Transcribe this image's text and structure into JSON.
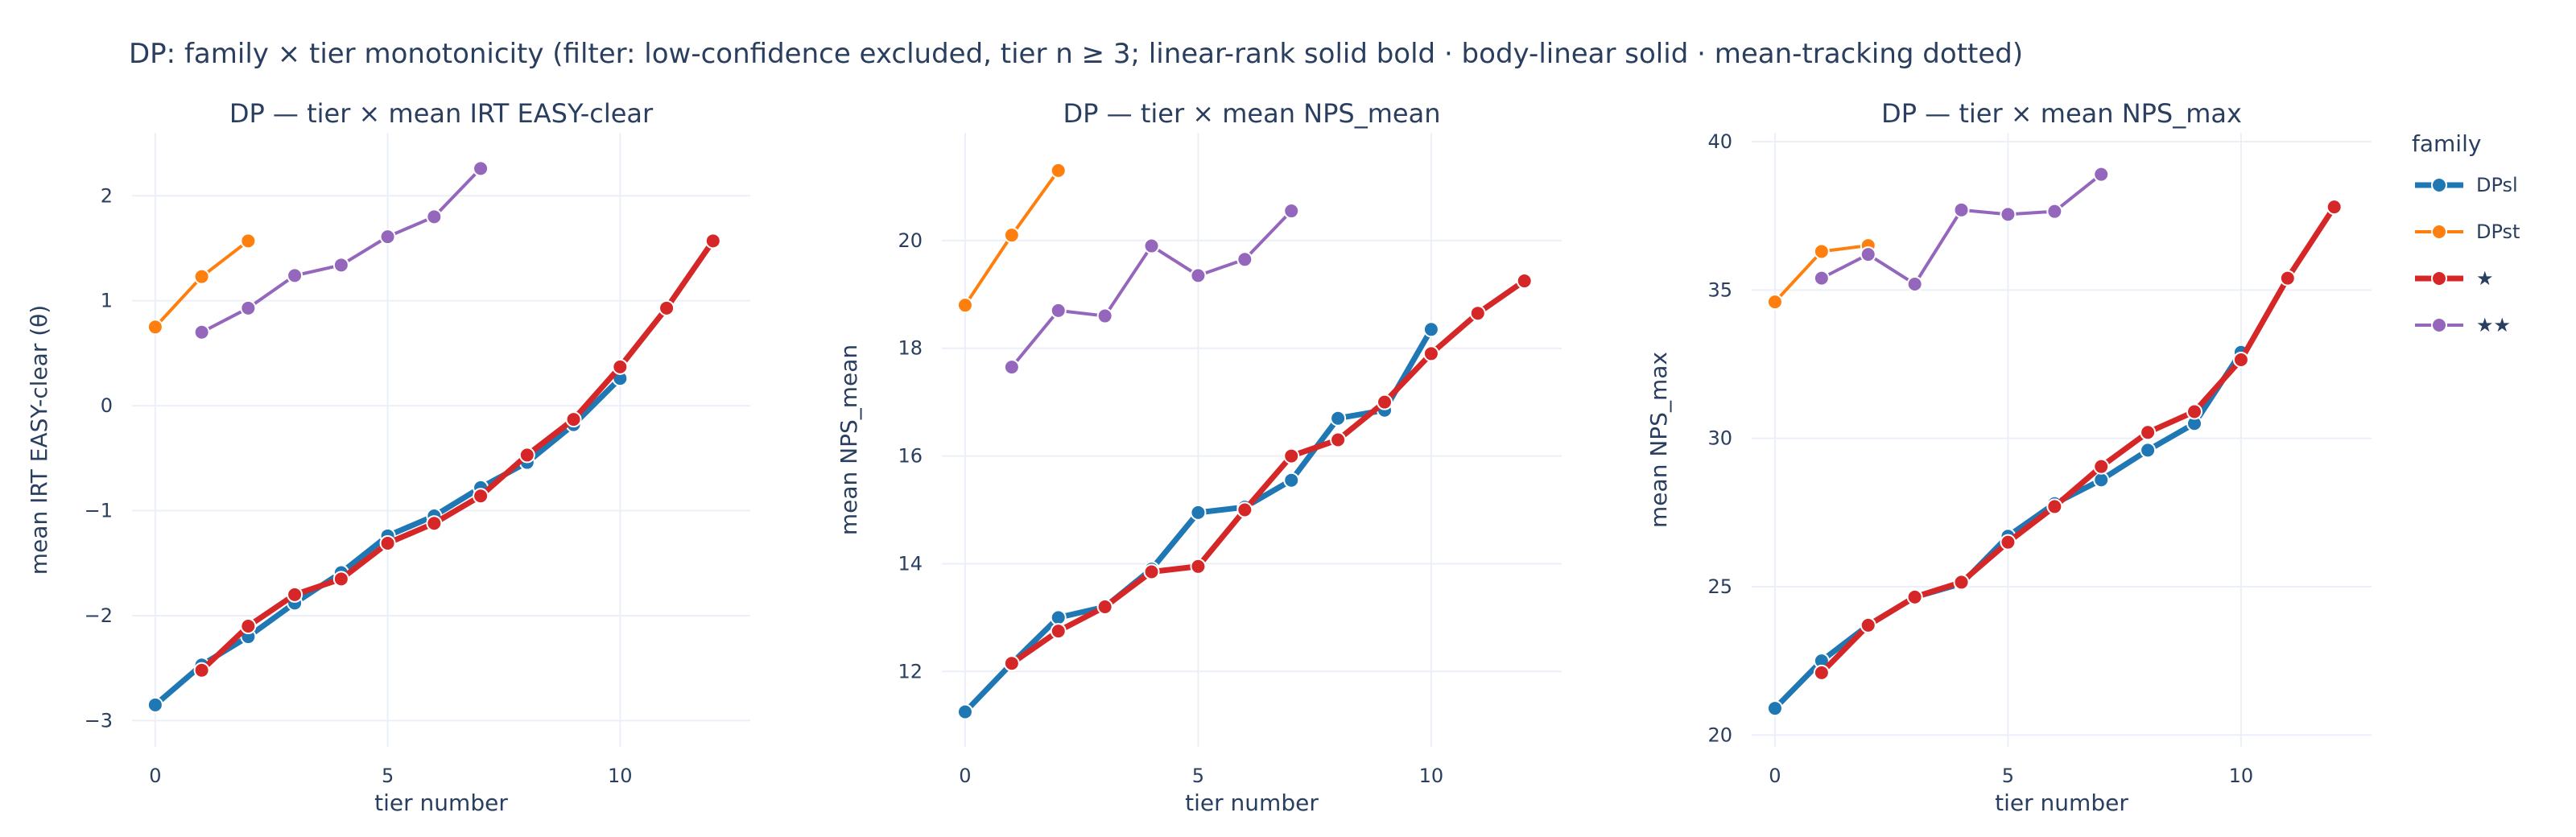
{
  "figure": {
    "title": "DP: family × tier monotonicity (filter: low-confidence excluded, tier n ≥ 3; linear-rank solid bold · body-linear solid · mean-tracking dotted)"
  },
  "legend": {
    "title": "family",
    "placement": "right",
    "entries": [
      {
        "name": "DPsl",
        "color": "#1f77b4",
        "bold": true
      },
      {
        "name": "DPst",
        "color": "#ff7f0e",
        "bold": false
      },
      {
        "name": "★",
        "color": "#d62728",
        "bold": true
      },
      {
        "name": "★★",
        "color": "#9467bd",
        "bold": false
      }
    ]
  },
  "chart_data": [
    {
      "type": "line",
      "title": "DP — tier × mean IRT EASY-clear",
      "xlabel": "tier number",
      "ylabel": "mean IRT EASY-clear (θ)",
      "xlim": [
        -0.5,
        12.8
      ],
      "ylim": [
        -3.25,
        2.6
      ],
      "xticks": [
        0,
        5,
        10
      ],
      "yticks": [
        -3,
        -2,
        -1,
        0,
        1,
        2
      ],
      "grid": true,
      "series": [
        {
          "name": "DPsl",
          "x": [
            0,
            1,
            2,
            3,
            4,
            5,
            6,
            7,
            8,
            9,
            10
          ],
          "y": [
            -2.85,
            -2.47,
            -2.2,
            -1.88,
            -1.59,
            -1.24,
            -1.05,
            -0.78,
            -0.54,
            -0.18,
            0.26
          ]
        },
        {
          "name": "DPst",
          "x": [
            0,
            1,
            2
          ],
          "y": [
            0.75,
            1.23,
            1.57
          ]
        },
        {
          "name": "★",
          "x": [
            1,
            2,
            3,
            4,
            5,
            6,
            7,
            8,
            9,
            10,
            11,
            12
          ],
          "y": [
            -2.52,
            -2.1,
            -1.8,
            -1.65,
            -1.31,
            -1.12,
            -0.86,
            -0.47,
            -0.13,
            0.37,
            0.93,
            1.57
          ]
        },
        {
          "name": "★★",
          "x": [
            1,
            2,
            3,
            4,
            5,
            6,
            7
          ],
          "y": [
            0.7,
            0.93,
            1.24,
            1.34,
            1.61,
            1.8,
            2.26
          ]
        }
      ]
    },
    {
      "type": "line",
      "title": "DP — tier × mean NPS_mean",
      "xlabel": "tier number",
      "ylabel": "mean NPS_mean",
      "xlim": [
        -0.5,
        12.8
      ],
      "ylim": [
        10.6,
        22.0
      ],
      "xticks": [
        0,
        5,
        10
      ],
      "yticks": [
        12,
        14,
        16,
        18,
        20
      ],
      "grid": true,
      "series": [
        {
          "name": "DPsl",
          "x": [
            0,
            1,
            2,
            3,
            4,
            5,
            6,
            7,
            8,
            9,
            10
          ],
          "y": [
            11.25,
            12.15,
            13.0,
            13.2,
            13.9,
            14.95,
            15.05,
            15.55,
            16.7,
            16.85,
            18.35
          ]
        },
        {
          "name": "DPst",
          "x": [
            0,
            1,
            2
          ],
          "y": [
            18.8,
            20.1,
            21.3
          ]
        },
        {
          "name": "★",
          "x": [
            1,
            2,
            3,
            4,
            5,
            6,
            7,
            8,
            9,
            10,
            11,
            12
          ],
          "y": [
            12.15,
            12.75,
            13.2,
            13.85,
            13.95,
            15.0,
            16.0,
            16.3,
            17.0,
            17.9,
            18.65,
            19.25
          ]
        },
        {
          "name": "★★",
          "x": [
            1,
            2,
            3,
            4,
            5,
            6,
            7
          ],
          "y": [
            17.65,
            18.7,
            18.6,
            19.9,
            19.35,
            19.65,
            20.55
          ]
        }
      ]
    },
    {
      "type": "line",
      "title": "DP — tier × mean NPS_max",
      "xlabel": "tier number",
      "ylabel": "mean NPS_max",
      "xlim": [
        -0.5,
        12.8
      ],
      "ylim": [
        19.6,
        40.3
      ],
      "xticks": [
        0,
        5,
        10
      ],
      "yticks": [
        20,
        25,
        30,
        35,
        40
      ],
      "grid": true,
      "series": [
        {
          "name": "DPsl",
          "x": [
            0,
            1,
            2,
            3,
            4,
            5,
            6,
            7,
            8,
            9,
            10
          ],
          "y": [
            20.9,
            22.5,
            23.7,
            24.65,
            25.1,
            26.7,
            27.8,
            28.6,
            29.6,
            30.5,
            32.9
          ]
        },
        {
          "name": "DPst",
          "x": [
            0,
            1,
            2
          ],
          "y": [
            34.6,
            36.3,
            36.5
          ]
        },
        {
          "name": "★",
          "x": [
            1,
            2,
            3,
            4,
            5,
            6,
            7,
            8,
            9,
            10,
            11,
            12
          ],
          "y": [
            22.1,
            23.7,
            24.65,
            25.15,
            26.5,
            27.7,
            29.05,
            30.2,
            30.9,
            32.65,
            35.4,
            37.8
          ]
        },
        {
          "name": "★★",
          "x": [
            1,
            2,
            3,
            4,
            5,
            6,
            7
          ],
          "y": [
            35.4,
            36.2,
            35.2,
            37.7,
            37.55,
            37.65,
            38.9
          ]
        }
      ]
    }
  ]
}
